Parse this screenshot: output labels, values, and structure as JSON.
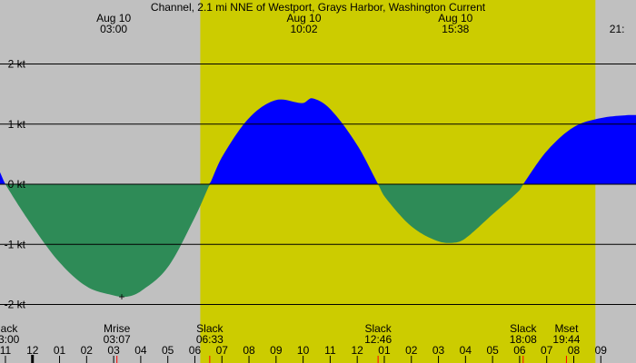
{
  "chart_data": {
    "type": "area",
    "title": "Channel, 2.1 mi NNE of Westport, Grays Harbor, Washington Current",
    "xlabel": "",
    "ylabel": "",
    "unit": "kt",
    "ylim": [
      -2.1,
      2.5
    ],
    "xlim": [
      22.8,
      46.3
    ],
    "x_units": "hours from Aug 10 00:00 (local)",
    "yticks": [
      {
        "value": 2,
        "label": "2 kt"
      },
      {
        "value": 1,
        "label": "1 kt"
      },
      {
        "value": 0,
        "label": "0 kt"
      },
      {
        "value": -1,
        "label": "-1 kt"
      },
      {
        "value": -2,
        "label": "-2 kt"
      }
    ],
    "grid": true,
    "daylight": {
      "start": 30.2,
      "end": 44.8
    },
    "colors": {
      "flood": "#0000ff",
      "ebb": "#2e8b57",
      "day": "#cccc00",
      "night": "#c0c0c0",
      "tick_red": "#ff0000"
    },
    "series": [
      {
        "x": [
          22.8,
          23.0,
          24.0,
          25.0,
          26.0,
          27.0,
          27.5,
          28.0,
          29.0,
          30.0,
          30.55,
          31.0,
          32.0,
          33.0,
          34.0,
          34.33,
          35.0,
          36.0,
          36.77,
          37.0,
          38.0,
          39.0,
          39.63,
          40.0,
          41.0,
          42.0,
          42.13,
          43.0,
          44.0,
          45.0,
          46.0,
          46.3
        ],
        "values": [
          0.2,
          0.0,
          -0.7,
          -1.3,
          -1.7,
          -1.85,
          -1.87,
          -1.78,
          -1.38,
          -0.55,
          0.0,
          0.45,
          1.1,
          1.4,
          1.35,
          1.43,
          1.25,
          0.65,
          0.0,
          -0.2,
          -0.7,
          -0.95,
          -0.97,
          -0.9,
          -0.5,
          -0.1,
          0.0,
          0.55,
          0.95,
          1.1,
          1.15,
          1.15
        ]
      }
    ],
    "top_labels": [
      {
        "x": 27.0,
        "date": "Aug 10",
        "time": "03:00"
      },
      {
        "x": 34.03,
        "date": "Aug 10",
        "time": "10:02"
      },
      {
        "x": 39.63,
        "date": "Aug 10",
        "time": "15:38"
      },
      {
        "x": 45.6,
        "date": "",
        "time": "21:"
      }
    ],
    "event_labels": [
      {
        "x": 23.0,
        "name": "lack",
        "time": "3:00",
        "anchor": "start"
      },
      {
        "x": 27.12,
        "name": "Mrise",
        "time": "03:07",
        "anchor": "middle"
      },
      {
        "x": 30.55,
        "name": "Slack",
        "time": "06:33",
        "anchor": "middle"
      },
      {
        "x": 36.77,
        "name": "Slack",
        "time": "12:46",
        "anchor": "middle"
      },
      {
        "x": 42.13,
        "name": "Slack",
        "time": "18:08",
        "anchor": "middle"
      },
      {
        "x": 43.73,
        "name": "Mset",
        "time": "19:44",
        "anchor": "middle"
      }
    ],
    "hour_ticks": [
      "11",
      "12",
      "01",
      "02",
      "03",
      "04",
      "05",
      "06",
      "07",
      "08",
      "09",
      "10",
      "11",
      "12",
      "01",
      "02",
      "03",
      "04",
      "05",
      "06",
      "07",
      "08",
      "09"
    ],
    "hour_ticks_start": 23,
    "midnight_x": 24,
    "red_ticks": [
      27.12,
      30.55,
      36.77,
      42.13,
      43.73
    ],
    "extremum_marker": {
      "x": 27.3,
      "value": -1.87,
      "symbol": "+"
    }
  }
}
